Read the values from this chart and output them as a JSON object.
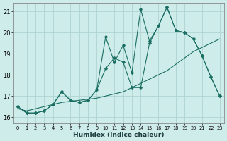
{
  "xlabel": "Humidex (Indice chaleur)",
  "xlim": [
    -0.5,
    23.5
  ],
  "ylim": [
    15.7,
    21.4
  ],
  "xticks": [
    0,
    1,
    2,
    3,
    4,
    5,
    6,
    7,
    8,
    9,
    10,
    11,
    12,
    13,
    14,
    15,
    16,
    17,
    18,
    19,
    20,
    21,
    22,
    23
  ],
  "yticks": [
    16,
    17,
    18,
    19,
    20,
    21
  ],
  "bg_color": "#ceecea",
  "grid_color": "#add4d0",
  "line_color": "#1a6e62",
  "line1_x": [
    0,
    1,
    2,
    3,
    4,
    5,
    6,
    7,
    8,
    9,
    10,
    11,
    12,
    13,
    14,
    15,
    16,
    17,
    18,
    19,
    20,
    21,
    22,
    23
  ],
  "line1_y": [
    16.4,
    16.3,
    16.4,
    16.5,
    16.6,
    16.7,
    16.75,
    16.8,
    16.85,
    16.9,
    17.0,
    17.1,
    17.2,
    17.4,
    17.6,
    17.8,
    18.0,
    18.2,
    18.5,
    18.8,
    19.1,
    19.3,
    19.5,
    19.7
  ],
  "line2_x": [
    0,
    1,
    2,
    3,
    4,
    5,
    6,
    7,
    8,
    9,
    10,
    11,
    12,
    13,
    14,
    15,
    16,
    17,
    18,
    19,
    20,
    21,
    22,
    23
  ],
  "line2_y": [
    16.5,
    16.2,
    16.2,
    16.3,
    16.6,
    17.2,
    16.8,
    16.7,
    16.8,
    17.3,
    18.3,
    18.8,
    18.6,
    17.4,
    17.4,
    19.5,
    20.3,
    21.2,
    20.1,
    20.0,
    19.7,
    18.9,
    17.9,
    17.0
  ],
  "line3_x": [
    0,
    1,
    2,
    3,
    4,
    5,
    6,
    7,
    8,
    9,
    10,
    11,
    12,
    13,
    14,
    15,
    16,
    17,
    18,
    19,
    20,
    21,
    22,
    23
  ],
  "line3_y": [
    16.5,
    16.2,
    16.2,
    16.3,
    16.6,
    17.2,
    16.8,
    16.7,
    16.8,
    17.3,
    19.8,
    18.6,
    19.4,
    18.1,
    21.1,
    19.6,
    20.3,
    21.2,
    20.1,
    20.0,
    19.7,
    18.9,
    17.9,
    17.0
  ]
}
